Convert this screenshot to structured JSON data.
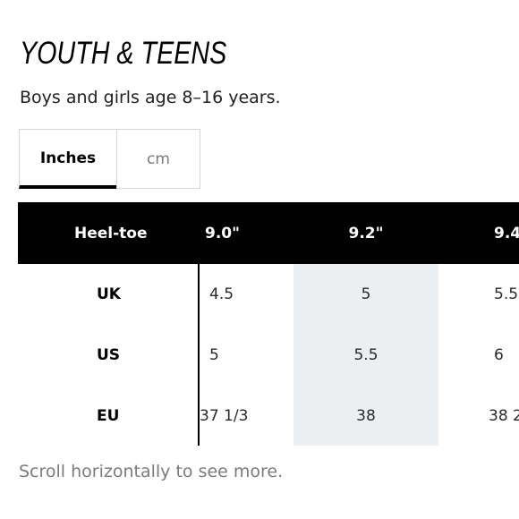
{
  "title": "YOUTH & TEENS",
  "subtitle": "Boys and girls age 8–16 years.",
  "unit_toggle": {
    "options": [
      {
        "label": "Inches",
        "active": true
      },
      {
        "label": "cm",
        "active": false
      }
    ]
  },
  "table": {
    "header_label": "Heel-toe",
    "columns": [
      "9.0\"",
      "9.2\"",
      "9.4"
    ],
    "rows": [
      {
        "label": "UK",
        "values": [
          "4.5",
          "5",
          "5.5"
        ]
      },
      {
        "label": "US",
        "values": [
          "5",
          "5.5",
          "6"
        ]
      },
      {
        "label": "EU",
        "values": [
          "37 1/3",
          "38",
          "38 2"
        ]
      }
    ],
    "highlight_column_index": 1
  },
  "footnote": "Scroll horizontally to see more.",
  "colors": {
    "header_bg": "#000000",
    "highlight_bg": "#ebeff2",
    "muted_text": "#7b7b7b",
    "active_tab_underline": "#000000"
  }
}
